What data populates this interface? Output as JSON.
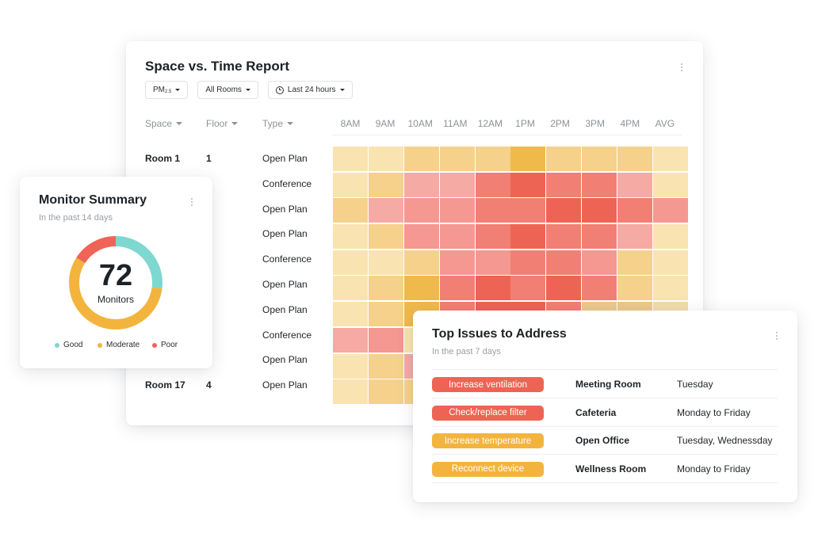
{
  "report": {
    "title": "Space vs. Time Report",
    "filters": {
      "pollutant": "PM",
      "pollutant_sub": "2.5",
      "rooms": "All Rooms",
      "range": "Last 24 hours"
    },
    "columns": {
      "space": "Space",
      "floor": "Floor",
      "type": "Type"
    },
    "hours": [
      "8AM",
      "9AM",
      "10AM",
      "11AM",
      "12AM",
      "1PM",
      "2PM",
      "3PM",
      "4PM",
      "AVG"
    ],
    "rows": [
      {
        "space": "Room 1",
        "floor": "1",
        "type": "Open Plan"
      },
      {
        "space": "",
        "floor": "",
        "type": "Conference"
      },
      {
        "space": "",
        "floor": "",
        "type": "Open Plan"
      },
      {
        "space": "",
        "floor": "",
        "type": "Open Plan"
      },
      {
        "space": "",
        "floor": "",
        "type": "Conference"
      },
      {
        "space": "",
        "floor": "",
        "type": "Open Plan"
      },
      {
        "space": "",
        "floor": "",
        "type": "Open Plan"
      },
      {
        "space": "",
        "floor": "",
        "type": "Conference"
      },
      {
        "space": "",
        "floor": "",
        "type": "Open Plan"
      },
      {
        "space": "Room 17",
        "floor": "4",
        "type": "Open Plan"
      }
    ],
    "heat_colors": {
      "0": "#f9e3b1",
      "1": "#f6d18c",
      "2": "#f0b94c",
      "3": "#f5aaa4",
      "4": "#f49891",
      "5": "#f27f73",
      "6": "#ee6454",
      "7": "#ecc98c",
      "8": "#f2dcac"
    },
    "heat": [
      [
        0,
        0,
        1,
        1,
        1,
        2,
        1,
        1,
        1,
        0
      ],
      [
        0,
        1,
        3,
        3,
        5,
        6,
        5,
        5,
        3,
        0
      ],
      [
        1,
        3,
        4,
        4,
        5,
        5,
        6,
        6,
        5,
        4
      ],
      [
        0,
        1,
        4,
        4,
        5,
        6,
        5,
        5,
        3,
        0
      ],
      [
        0,
        0,
        1,
        4,
        4,
        5,
        5,
        4,
        1,
        0
      ],
      [
        0,
        1,
        2,
        5,
        6,
        5,
        6,
        5,
        1,
        0
      ],
      [
        0,
        1,
        2,
        5,
        6,
        6,
        5,
        7,
        7,
        8
      ],
      [
        3,
        4,
        0,
        0,
        0,
        0,
        0,
        0,
        0,
        0
      ],
      [
        0,
        1,
        3,
        0,
        0,
        0,
        0,
        0,
        0,
        0
      ],
      [
        0,
        1,
        1,
        0,
        0,
        0,
        0,
        0,
        0,
        0
      ]
    ]
  },
  "summary": {
    "title": "Monitor Summary",
    "subtitle": "In the past 14 days",
    "total": "72",
    "total_label": "Monitors",
    "segments": [
      {
        "name": "Good",
        "color": "#7ed8cf",
        "value": 0.27
      },
      {
        "name": "Moderate",
        "color": "#f3b43e",
        "value": 0.57
      },
      {
        "name": "Poor",
        "color": "#ef6457",
        "value": 0.16
      }
    ]
  },
  "issues": {
    "title": "Top Issues to Address",
    "subtitle": "In the past 7 days",
    "items": [
      {
        "action": "Increase ventilation",
        "color": "#ee6454",
        "room": "Meeting Room",
        "when": "Tuesday"
      },
      {
        "action": "Check/replace filter",
        "color": "#ee6454",
        "room": "Cafeteria",
        "when": "Monday to Friday"
      },
      {
        "action": "Increase temperature",
        "color": "#f3b43e",
        "room": "Open Office",
        "when": "Tuesday, Wednessday"
      },
      {
        "action": "Reconnect device",
        "color": "#f3b43e",
        "room": "Wellness Room",
        "when": "Monday to Friday"
      }
    ]
  }
}
